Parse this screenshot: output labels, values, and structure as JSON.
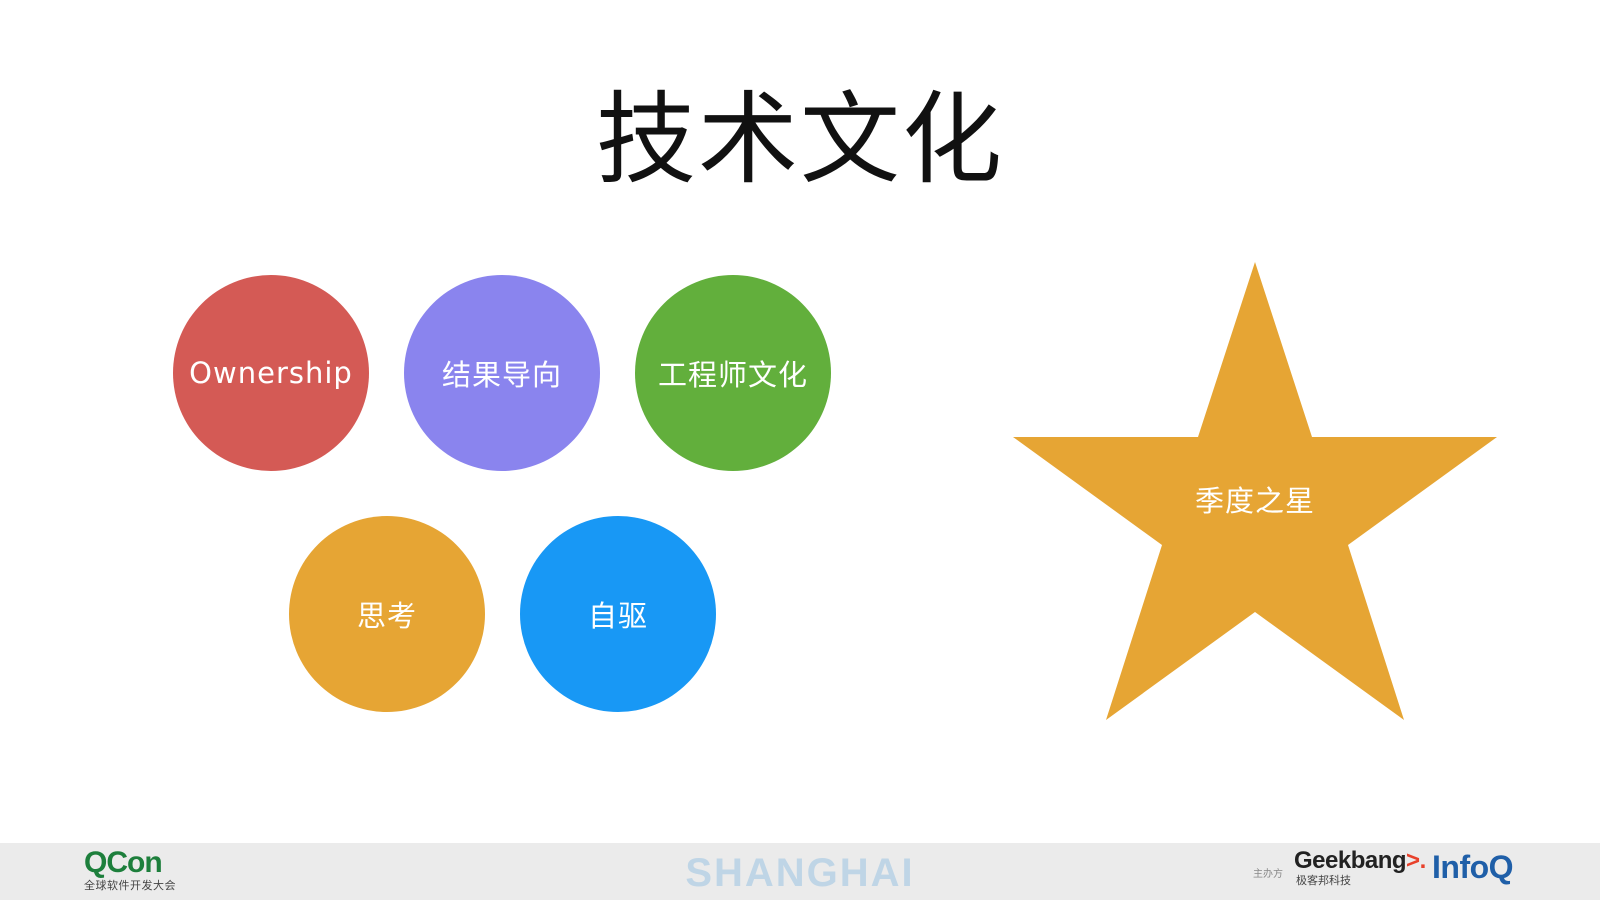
{
  "slide": {
    "title": "技术文化"
  },
  "circles": [
    {
      "label": "Ownership",
      "color": "#d45a55"
    },
    {
      "label": "结果导向",
      "color": "#8a84ee"
    },
    {
      "label": "工程师文化",
      "color": "#62af3c"
    },
    {
      "label": "思考",
      "color": "#e6a534"
    },
    {
      "label": "自驱",
      "color": "#1898f5"
    }
  ],
  "star": {
    "label": "季度之星",
    "color": "#e6a534"
  },
  "footer": {
    "qcon_brand": "QCon",
    "qcon_subtitle": "全球软件开发大会",
    "city": "SHANGHAI",
    "organizer_label": "主办方",
    "geekbang_brand": "Geekbang",
    "geekbang_subtitle": "极客邦科技",
    "infoq_brand": "InfoQ",
    "background": "#ebebeb"
  }
}
